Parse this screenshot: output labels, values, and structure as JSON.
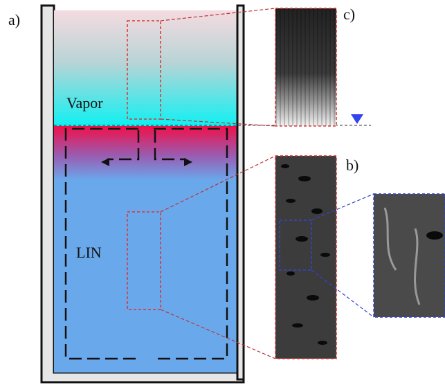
{
  "labels": {
    "panel_a": "a)",
    "panel_c": "c)",
    "panel_b": "b)",
    "vapor": "Vapor",
    "liquid": "LIN"
  }
}
